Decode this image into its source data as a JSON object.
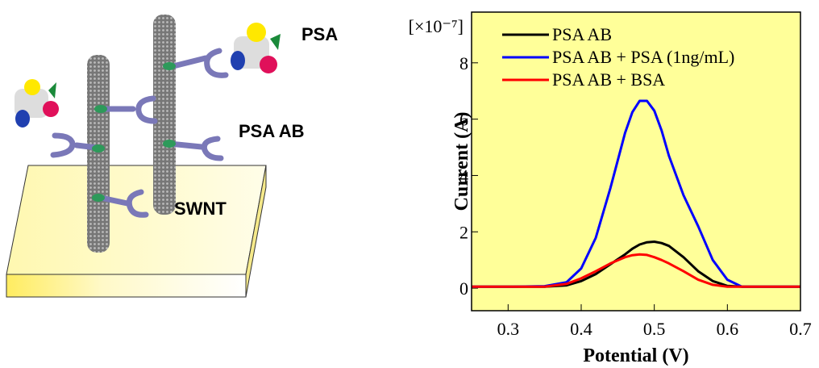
{
  "diagram": {
    "labels": [
      "PSA",
      "PSA AB",
      "SWNT"
    ]
  },
  "chart_data": {
    "type": "line",
    "xlabel": "Potential (V)",
    "ylabel": "Current (A)",
    "y_scale_label": "[×10⁻⁷]",
    "x": [
      0.25,
      0.3,
      0.35,
      0.38,
      0.4,
      0.42,
      0.44,
      0.46,
      0.47,
      0.48,
      0.49,
      0.5,
      0.51,
      0.52,
      0.54,
      0.56,
      0.58,
      0.6,
      0.62,
      0.65,
      0.7
    ],
    "series": [
      {
        "name": "PSA AB",
        "color": "#000000",
        "values": [
          0.05,
          0.05,
          0.05,
          0.1,
          0.25,
          0.5,
          0.85,
          1.2,
          1.4,
          1.55,
          1.63,
          1.65,
          1.6,
          1.5,
          1.1,
          0.6,
          0.25,
          0.08,
          0.05,
          0.05,
          0.05
        ]
      },
      {
        "name": "PSA AB + PSA (1ng/mL)",
        "color": "#0000ff",
        "values": [
          0.05,
          0.05,
          0.07,
          0.21,
          0.7,
          1.79,
          3.56,
          5.51,
          6.25,
          6.65,
          6.65,
          6.3,
          5.6,
          4.7,
          3.3,
          2.2,
          1.0,
          0.3,
          0.05,
          0.05,
          0.05
        ]
      },
      {
        "name": "PSA AB + BSA",
        "color": "#ff0000",
        "values": [
          0.05,
          0.05,
          0.05,
          0.15,
          0.35,
          0.6,
          0.88,
          1.1,
          1.17,
          1.2,
          1.18,
          1.1,
          1.0,
          0.88,
          0.6,
          0.3,
          0.12,
          0.05,
          0.05,
          0.05,
          0.05
        ]
      }
    ],
    "xlim": [
      0.25,
      0.7
    ],
    "ylim": [
      -0.8,
      9.8
    ],
    "xticks": [
      0.3,
      0.4,
      0.5,
      0.6,
      0.7
    ],
    "yticks": [
      0,
      2,
      4,
      6,
      8
    ],
    "background": "#ffff99",
    "legend": "upper-left"
  }
}
